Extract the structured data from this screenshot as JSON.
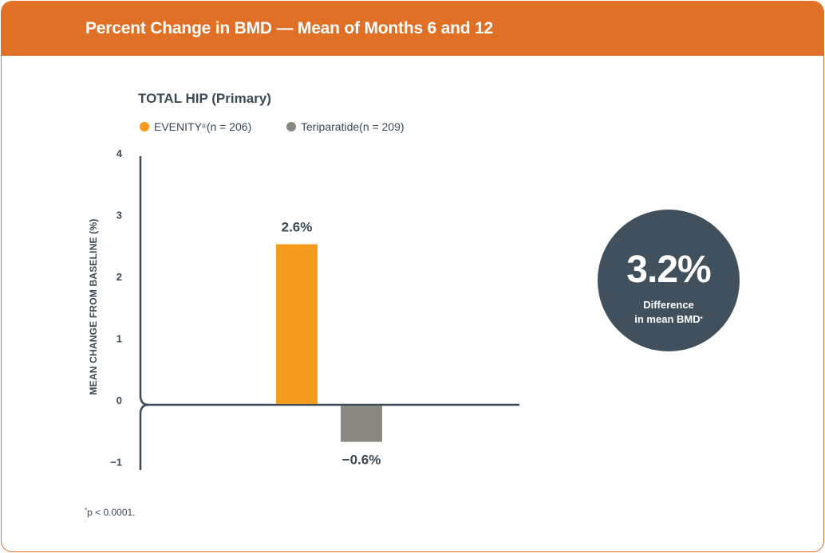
{
  "header": {
    "title": "Percent Change in BMD — Mean of Months 6 and 12"
  },
  "chart_data": {
    "type": "bar",
    "title": "TOTAL HIP (Primary)",
    "ylabel": "MEAN CHANGE FROM BASELINE (%)",
    "xlabel": "",
    "ylim": [
      -1,
      4
    ],
    "yticks": [
      4,
      3,
      2,
      1,
      0,
      -1
    ],
    "ytick_labels": [
      "4",
      "3",
      "2",
      "1",
      "0",
      "−1"
    ],
    "series": [
      {
        "name": "EVENITY",
        "name_mark": "®",
        "n_label": " (n = 206)",
        "value": 2.6,
        "label": "2.6%",
        "color": "#f59c1f"
      },
      {
        "name": "Teriparatide",
        "n_label": " (n = 209)",
        "value": -0.6,
        "label": "−0.6%",
        "color": "#8a8782"
      }
    ]
  },
  "callout": {
    "value": "3.2%",
    "line1": "Difference",
    "line2": "in mean BMD",
    "mark": "*"
  },
  "footnote": {
    "mark": "*",
    "text": "p < 0.0001."
  },
  "colors": {
    "accent": "#e07026",
    "text": "#3b4a55",
    "circle": "#40505c"
  }
}
